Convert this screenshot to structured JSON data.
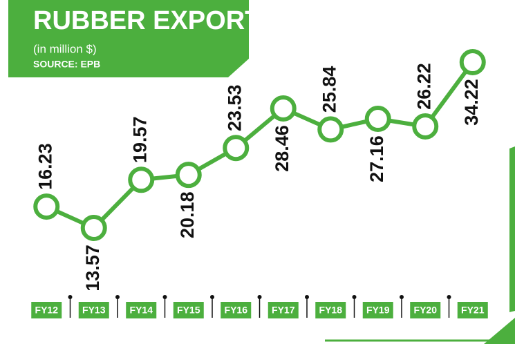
{
  "chart_data": {
    "type": "line",
    "title": "RUBBER EXPORTS",
    "subtitle": "(in million $)",
    "source": "SOURCE: EPB",
    "categories": [
      "FY12",
      "FY13",
      "FY14",
      "FY15",
      "FY16",
      "FY17",
      "FY18",
      "FY19",
      "FY20",
      "FY21"
    ],
    "values": [
      16.23,
      13.57,
      19.57,
      20.18,
      23.53,
      28.46,
      25.84,
      27.16,
      26.22,
      34.22
    ],
    "color": "#4caf3e"
  }
}
